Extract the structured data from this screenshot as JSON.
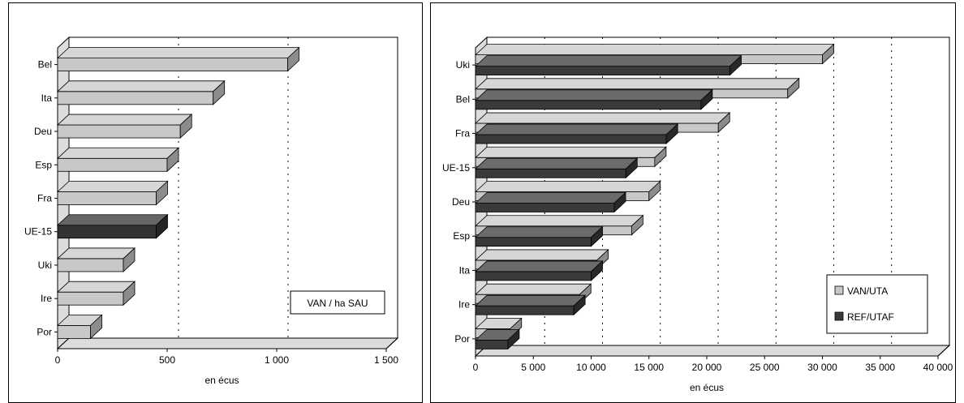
{
  "chart_data": [
    {
      "type": "bar",
      "orientation": "horizontal",
      "categories": [
        "Bel",
        "Ita",
        "Deu",
        "Esp",
        "Fra",
        "UE-15",
        "Uki",
        "Ire",
        "Por"
      ],
      "series": [
        {
          "values": [
            1050,
            710,
            560,
            500,
            450,
            450,
            300,
            300,
            150
          ]
        }
      ],
      "highlight_category": "UE-15",
      "xlabel": "en écus",
      "xlim": [
        0,
        1500
      ],
      "xticks": [
        0,
        500,
        1000,
        1500
      ],
      "xtick_labels": [
        "0",
        "500",
        "1 000",
        "1 500"
      ],
      "annotation": "VAN / ha SAU",
      "gridlines": "dotted vertical",
      "colors": {
        "bar": "#c8c8c8",
        "highlight": "#333333"
      }
    },
    {
      "type": "bar",
      "orientation": "horizontal",
      "categories": [
        "Uki",
        "Bel",
        "Fra",
        "UE-15",
        "Deu",
        "Esp",
        "Ita",
        "Ire",
        "Por"
      ],
      "series": [
        {
          "name": "VAN/UTA",
          "values": [
            30000,
            27000,
            21000,
            15500,
            15000,
            13500,
            10500,
            9000,
            3000
          ]
        },
        {
          "name": "REF/UTAF",
          "values": [
            22000,
            19500,
            16500,
            13000,
            12000,
            10000,
            10000,
            8500,
            2800
          ]
        }
      ],
      "xlabel": "en écus",
      "xlim": [
        0,
        40000
      ],
      "xticks": [
        0,
        5000,
        10000,
        15000,
        20000,
        25000,
        30000,
        35000,
        40000
      ],
      "xtick_labels": [
        "0",
        "5 000",
        "10 000",
        "15 000",
        "20 000",
        "25 000",
        "30 000",
        "35 000",
        "40 000"
      ],
      "legend": "right-bottom",
      "gridlines": "dotted vertical",
      "colors": {
        "VAN/UTA": "#c8c8c8",
        "REF/UTAF": "#3a3a3a"
      }
    }
  ]
}
